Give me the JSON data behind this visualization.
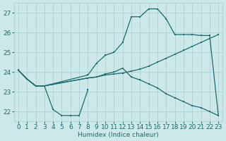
{
  "xlabel": "Humidex (Indice chaleur)",
  "xlim": [
    -0.5,
    23.5
  ],
  "ylim": [
    21.5,
    27.5
  ],
  "yticks": [
    22,
    23,
    24,
    25,
    26,
    27
  ],
  "xticks": [
    0,
    1,
    2,
    3,
    4,
    5,
    6,
    7,
    8,
    9,
    10,
    11,
    12,
    13,
    14,
    15,
    16,
    17,
    18,
    19,
    20,
    21,
    22,
    23
  ],
  "background_color": "#cde8e8",
  "grid_color": "#a8cccc",
  "line_color": "#1a6b6b",
  "line1": {
    "x": [
      0,
      1,
      2,
      3,
      4,
      5,
      6,
      7,
      8
    ],
    "y": [
      24.1,
      23.65,
      23.3,
      23.3,
      22.1,
      21.8,
      21.8,
      21.8,
      23.1
    ]
  },
  "line2": {
    "x": [
      0,
      1,
      2,
      3,
      8,
      9,
      10,
      11,
      12,
      13,
      14,
      15,
      16,
      17,
      18,
      19,
      20,
      21,
      22,
      23
    ],
    "y": [
      24.1,
      23.65,
      23.3,
      23.3,
      23.85,
      24.45,
      24.85,
      25.0,
      25.5,
      26.8,
      26.8,
      27.2,
      27.2,
      26.7,
      25.9,
      25.9,
      25.9,
      25.85,
      25.85,
      21.8
    ]
  },
  "line3": {
    "x": [
      0,
      1,
      2,
      3,
      8,
      9,
      10,
      11,
      12,
      13,
      14,
      15,
      16,
      17,
      18,
      19,
      20,
      21,
      22,
      23
    ],
    "y": [
      24.1,
      23.65,
      23.3,
      23.3,
      23.7,
      23.75,
      23.85,
      23.9,
      23.95,
      24.05,
      24.15,
      24.3,
      24.5,
      24.7,
      24.9,
      25.1,
      25.3,
      25.5,
      25.7,
      25.9
    ]
  },
  "line4": {
    "x": [
      0,
      1,
      2,
      3,
      8,
      9,
      10,
      11,
      12,
      13,
      14,
      15,
      16,
      17,
      18,
      19,
      20,
      21,
      22,
      23
    ],
    "y": [
      24.1,
      23.65,
      23.3,
      23.3,
      23.7,
      23.75,
      23.9,
      24.0,
      24.2,
      23.75,
      23.6,
      23.4,
      23.2,
      22.9,
      22.7,
      22.5,
      22.3,
      22.2,
      22.0,
      21.8
    ]
  },
  "font_size": 6.5
}
